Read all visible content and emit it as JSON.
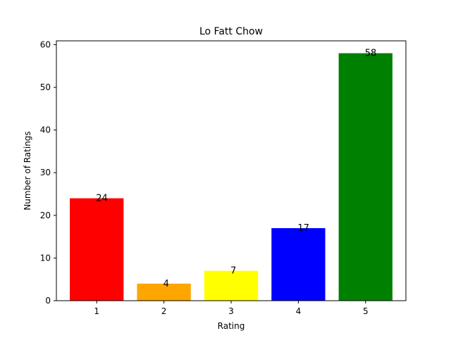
{
  "chart_data": {
    "type": "bar",
    "title": "Lo Fatt Chow",
    "xlabel": "Rating",
    "ylabel": "Number of Ratings",
    "categories": [
      "1",
      "2",
      "3",
      "4",
      "5"
    ],
    "values": [
      24,
      4,
      7,
      17,
      58
    ],
    "data_labels": [
      "24",
      "4",
      "7",
      "17",
      "58"
    ],
    "colors": [
      "#ff0000",
      "#ffa500",
      "#ffff00",
      "#0000ff",
      "#008000"
    ],
    "ylim": [
      0,
      60.9
    ],
    "yticks": [
      0,
      10,
      20,
      30,
      40,
      50,
      60
    ],
    "ytick_labels": [
      "0",
      "10",
      "20",
      "30",
      "40",
      "50",
      "60"
    ],
    "grid": false,
    "legend": "none"
  }
}
